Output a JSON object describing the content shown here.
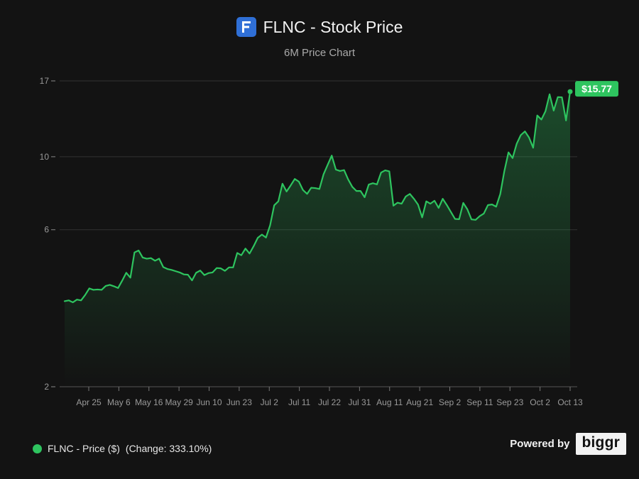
{
  "header": {
    "title": "FLNC - Stock Price",
    "subtitle": "6M Price Chart"
  },
  "legend": {
    "label": "FLNC - Price ($)",
    "change": "(Change: 333.10%)"
  },
  "footer": {
    "powered_by": "Powered by",
    "brand": "biggr"
  },
  "colors": {
    "background": "#131313",
    "line": "#2ec45f",
    "logo": "#2f6fd6",
    "grid": "#333333"
  },
  "chart_data": {
    "type": "area",
    "title": "FLNC - Stock Price",
    "subtitle": "6M Price Chart",
    "y_scale": "log",
    "ylim": [
      2,
      17
    ],
    "y_ticks": [
      2,
      6,
      10,
      17
    ],
    "x_ticks": [
      "Apr 25",
      "May 6",
      "May 16",
      "May 29",
      "Jun 10",
      "Jun 23",
      "Jul 2",
      "Jul 11",
      "Jul 22",
      "Jul 31",
      "Aug 11",
      "Aug 21",
      "Sep 2",
      "Sep 11",
      "Sep 23",
      "Oct 2",
      "Oct 13"
    ],
    "grid": true,
    "last_value_label": "$15.77",
    "series": [
      {
        "name": "FLNC - Price ($)",
        "values": [
          3.64,
          3.66,
          3.61,
          3.68,
          3.66,
          3.8,
          3.98,
          3.94,
          3.95,
          3.94,
          4.05,
          4.08,
          4.04,
          3.99,
          4.2,
          4.44,
          4.29,
          5.12,
          5.19,
          4.94,
          4.9,
          4.92,
          4.83,
          4.9,
          4.62,
          4.56,
          4.53,
          4.49,
          4.45,
          4.39,
          4.38,
          4.21,
          4.44,
          4.51,
          4.37,
          4.43,
          4.45,
          4.59,
          4.58,
          4.5,
          4.61,
          4.61,
          5.1,
          5.02,
          5.26,
          5.08,
          5.35,
          5.67,
          5.8,
          5.68,
          6.19,
          7.12,
          7.32,
          8.28,
          7.84,
          8.18,
          8.56,
          8.4,
          7.92,
          7.71,
          8.05,
          8.03,
          7.98,
          8.84,
          9.45,
          10.08,
          9.14,
          9.05,
          9.11,
          8.53,
          8.1,
          7.87,
          7.87,
          7.53,
          8.23,
          8.31,
          8.24,
          8.95,
          9.09,
          9.03,
          7.1,
          7.25,
          7.2,
          7.57,
          7.71,
          7.45,
          7.15,
          6.54,
          7.32,
          7.2,
          7.35,
          6.99,
          7.45,
          7.13,
          6.79,
          6.47,
          6.46,
          7.24,
          6.92,
          6.45,
          6.43,
          6.6,
          6.72,
          7.13,
          7.16,
          7.05,
          7.7,
          9.05,
          10.31,
          9.91,
          10.95,
          11.64,
          11.94,
          11.44,
          10.65,
          13.35,
          12.97,
          13.75,
          15.48,
          13.81,
          15.18,
          15.16,
          12.89,
          15.77
        ]
      }
    ]
  }
}
